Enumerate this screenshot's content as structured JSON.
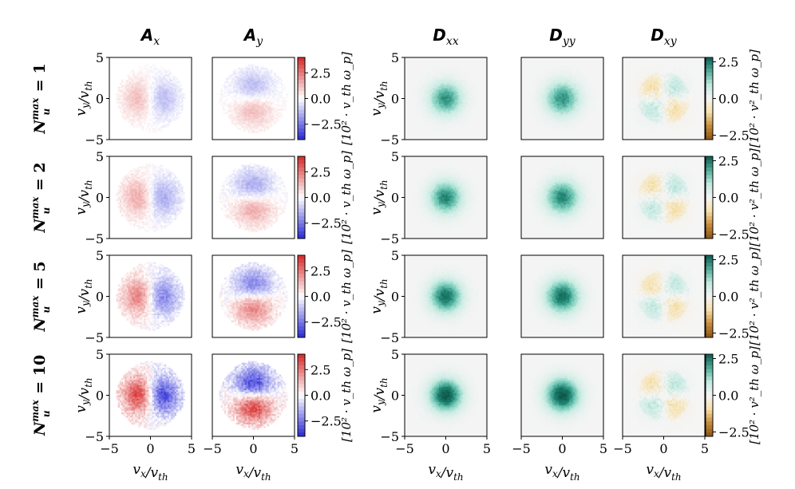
{
  "chart_data": {
    "type": "heatmap",
    "description_grid": "4 rows (N_u^max values) x 5 columns (A_x, A_y, D_xx, D_yy, D_xy) of heatmaps over (v_x/v_th, v_y/v_th)",
    "columns": [
      {
        "label": "A",
        "sub": "x",
        "cmap": "bwr"
      },
      {
        "label": "A",
        "sub": "y",
        "cmap": "bwr"
      },
      {
        "label": "D",
        "sub": "xx",
        "cmap": "teal"
      },
      {
        "label": "D",
        "sub": "yy",
        "cmap": "teal"
      },
      {
        "label": "D",
        "sub": "xy",
        "cmap": "brbg"
      }
    ],
    "rows": [
      {
        "n_label": "N",
        "n_sup": "max",
        "n_sub": "u",
        "n_value": "= 1",
        "amplitude": 0.35
      },
      {
        "n_label": "N",
        "n_sup": "max",
        "n_sub": "u",
        "n_value": "= 2",
        "amplitude": 0.45
      },
      {
        "n_label": "N",
        "n_sup": "max",
        "n_sub": "u",
        "n_value": "= 5",
        "amplitude": 0.65
      },
      {
        "n_label": "N",
        "n_sup": "max",
        "n_sub": "u",
        "n_value": "= 10",
        "amplitude": 0.95
      }
    ],
    "xlabel": {
      "main": "v",
      "sub": "x",
      "slash": "/",
      "den": "v",
      "den_sub": "th"
    },
    "ylabel": {
      "main": "v",
      "sub": "y",
      "slash": "/",
      "den": "v",
      "den_sub": "th"
    },
    "xlim": [
      -5,
      5
    ],
    "ylim": [
      -5,
      5
    ],
    "x_ticks": [
      -5,
      0,
      5
    ],
    "y_ticks": [
      -5,
      0,
      5
    ],
    "x_tick_labels": [
      "−5",
      "0",
      "5"
    ],
    "y_tick_labels": [
      "−5",
      "0",
      "5"
    ],
    "colorbar_A": {
      "range": [
        -4,
        4
      ],
      "ticks": [
        2.5,
        0.0,
        -2.5
      ],
      "tick_labels": [
        "2.5",
        "0.0",
        "−2.5"
      ],
      "label": "[10² · v_th ω_p]"
    },
    "colorbar_D": {
      "range": [
        -2.8,
        2.8
      ],
      "ticks": [
        2.5,
        0.0,
        -2.5
      ],
      "tick_labels": [
        "2.5",
        "0.0",
        "−2.5"
      ],
      "label": "[10² · v²_th ω_p]"
    },
    "colors": {
      "bwr_low": "#2a2ad8",
      "bwr_high": "#d83030",
      "teal_high": "#0d5a4c",
      "brbg_low": "#8c5412",
      "brbg_high": "#0a5c52",
      "panel_bg_D": "#f4f4f4"
    },
    "grid_resolution": 48
  }
}
